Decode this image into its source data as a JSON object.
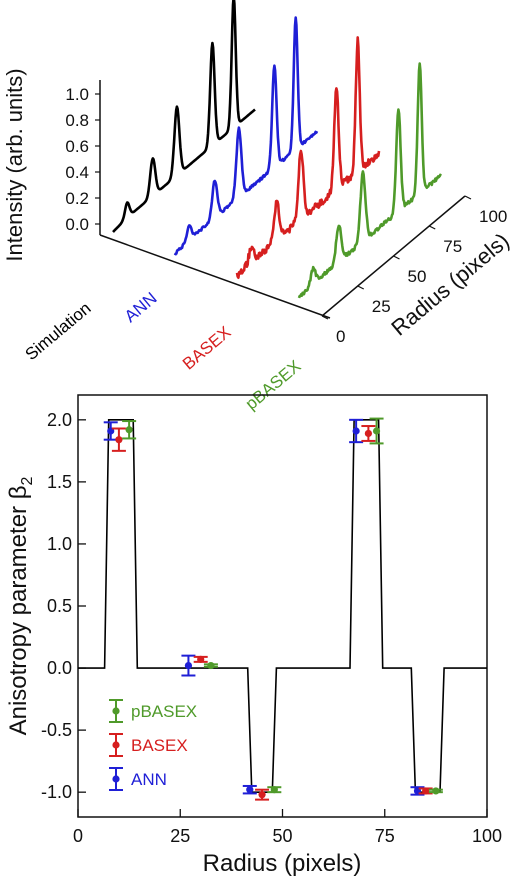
{
  "colors": {
    "simulation": "#000000",
    "ann": "#1f1fd6",
    "basex": "#d61f1f",
    "pbasex": "#4f9a2a"
  },
  "chart_data": [
    {
      "type": "line",
      "subtype": "3d-waterfall",
      "title": "",
      "ylabel": "Intensity (arb. units)",
      "xlabel": "Radius (pixels)",
      "ylim": [
        0,
        1.0
      ],
      "xlim": [
        0,
        100
      ],
      "yticks": [
        "0.0",
        "0.2",
        "0.4",
        "0.6",
        "0.8",
        "1.0"
      ],
      "xticks": [
        "0",
        "25",
        "50",
        "75",
        "100"
      ],
      "series_axis": [
        "Simulation",
        "ANN",
        "BASEX",
        "pBASEX"
      ],
      "peaks": [
        {
          "x": 10,
          "height": 0.12,
          "width": 2.2
        },
        {
          "x": 28,
          "height": 0.3,
          "width": 2.5
        },
        {
          "x": 45,
          "height": 0.55,
          "width": 2.5
        },
        {
          "x": 70,
          "height": 0.82,
          "width": 2.2
        },
        {
          "x": 85,
          "height": 1.05,
          "width": 2.0
        }
      ],
      "series": [
        {
          "name": "Simulation",
          "color": "#000000",
          "noise": 0.0
        },
        {
          "name": "ANN",
          "color": "#1f1fd6",
          "noise": 0.01
        },
        {
          "name": "BASEX",
          "color": "#d61f1f",
          "noise": 0.03
        },
        {
          "name": "pBASEX",
          "color": "#4f9a2a",
          "noise": 0.015
        }
      ]
    },
    {
      "type": "scatter",
      "xlabel": "Radius (pixels)",
      "ylabel_main": "Anisotropy parameter β",
      "ylabel_sub": "2",
      "xlim": [
        0,
        100
      ],
      "ylim": [
        -1.2,
        2.2
      ],
      "xticks": [
        0,
        25,
        50,
        75,
        100
      ],
      "yticks": [
        -1.0,
        -0.5,
        0.0,
        0.5,
        1.0,
        1.5,
        2.0
      ],
      "ytick_labels": [
        "-1.0",
        "-0.5",
        "0.0",
        "0.5",
        "1.0",
        "1.5",
        "2.0"
      ],
      "simulation_step": [
        [
          0,
          0
        ],
        [
          6.5,
          0
        ],
        [
          7.5,
          2
        ],
        [
          13.5,
          2
        ],
        [
          14.5,
          0
        ],
        [
          41.5,
          0
        ],
        [
          42.5,
          -1
        ],
        [
          47.5,
          -1
        ],
        [
          48.5,
          0
        ],
        [
          66.5,
          0
        ],
        [
          67.5,
          2
        ],
        [
          73.5,
          2
        ],
        [
          74.5,
          0
        ],
        [
          81.5,
          0
        ],
        [
          82.5,
          -1
        ],
        [
          88.5,
          -1
        ],
        [
          89.5,
          0
        ],
        [
          100,
          0
        ]
      ],
      "series": [
        {
          "name": "ANN",
          "color": "#1f1fd6",
          "points": [
            {
              "x": 8,
              "y": 1.91,
              "err": 0.07
            },
            {
              "x": 27,
              "y": 0.02,
              "err": 0.08
            },
            {
              "x": 42,
              "y": -0.98,
              "err": 0.03
            },
            {
              "x": 68,
              "y": 1.91,
              "err": 0.09
            },
            {
              "x": 83,
              "y": -0.99,
              "err": 0.03
            }
          ]
        },
        {
          "name": "BASEX",
          "color": "#d61f1f",
          "points": [
            {
              "x": 10,
              "y": 1.84,
              "err": 0.09
            },
            {
              "x": 30,
              "y": 0.07,
              "err": 0.02
            },
            {
              "x": 45,
              "y": -1.02,
              "err": 0.04
            },
            {
              "x": 71,
              "y": 1.89,
              "err": 0.06
            },
            {
              "x": 85,
              "y": -0.99,
              "err": 0.02
            }
          ]
        },
        {
          "name": "pBASEX",
          "color": "#4f9a2a",
          "points": [
            {
              "x": 12.5,
              "y": 1.92,
              "err": 0.07
            },
            {
              "x": 32.5,
              "y": 0.02,
              "err": 0.01
            },
            {
              "x": 48,
              "y": -0.98,
              "err": 0.02
            },
            {
              "x": 73,
              "y": 1.91,
              "err": 0.1
            },
            {
              "x": 87.5,
              "y": -0.99,
              "err": 0.01
            }
          ]
        }
      ],
      "legend": [
        "pBASEX",
        "BASEX",
        "ANN"
      ],
      "legend_position": "lower-left"
    }
  ]
}
